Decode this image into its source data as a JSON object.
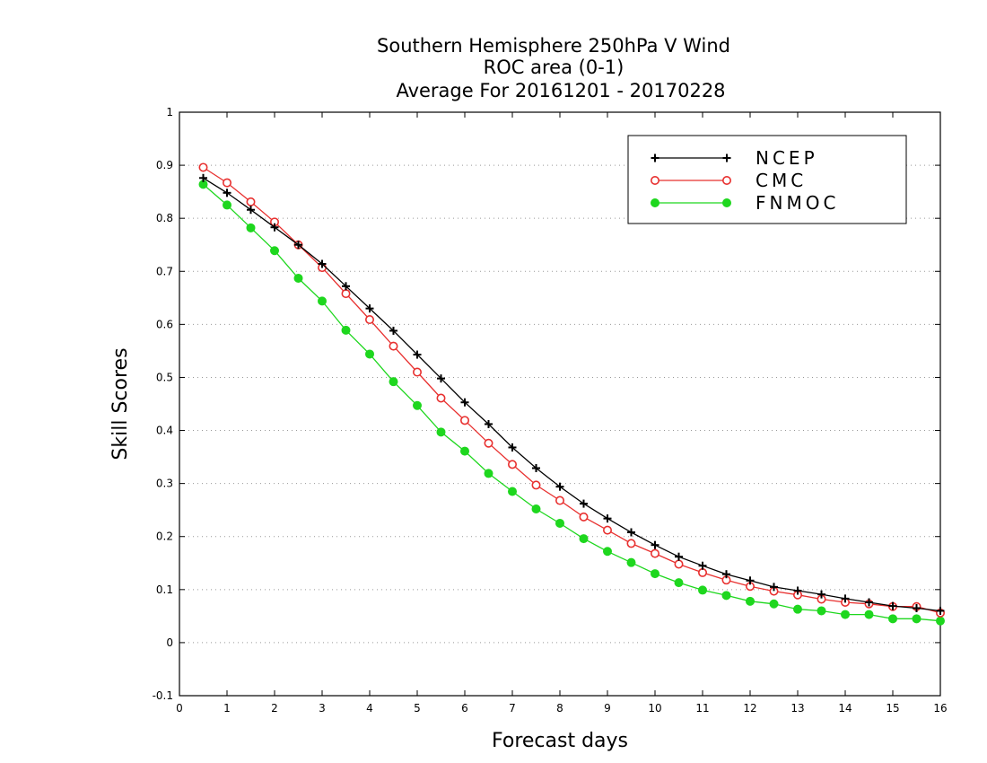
{
  "chart_data": {
    "type": "line",
    "title": [
      "Southern Hemisphere 250hPa V Wind",
      "ROC area (0-1)",
      "Average For 20161201 - 20170228"
    ],
    "xlabel": "Forecast days",
    "ylabel": "Skill Scores",
    "xlim": [
      0,
      16
    ],
    "ylim": [
      -0.1,
      1
    ],
    "xticks": [
      "0",
      "1",
      "2",
      "3",
      "4",
      "5",
      "6",
      "7",
      "8",
      "9",
      "10",
      "11",
      "12",
      "13",
      "14",
      "15",
      "16"
    ],
    "yticks": [
      "-0.1",
      "0",
      "0.1",
      "0.2",
      "0.3",
      "0.4",
      "0.5",
      "0.6",
      "0.7",
      "0.8",
      "0.9",
      "1"
    ],
    "grid": true,
    "legend_position": "top-right",
    "x": [
      0.5,
      1,
      1.5,
      2,
      2.5,
      3,
      3.5,
      4,
      4.5,
      5,
      5.5,
      6,
      6.5,
      7,
      7.5,
      8,
      8.5,
      9,
      9.5,
      10,
      10.5,
      11,
      11.5,
      12,
      12.5,
      13,
      13.5,
      14,
      14.5,
      15,
      15.5,
      16
    ],
    "series": [
      {
        "name": "NCEP",
        "color": "#000000",
        "marker": "plus",
        "values": [
          0.876,
          0.848,
          0.816,
          0.783,
          0.75,
          0.714,
          0.672,
          0.63,
          0.588,
          0.543,
          0.498,
          0.453,
          0.412,
          0.368,
          0.329,
          0.294,
          0.262,
          0.234,
          0.208,
          0.184,
          0.162,
          0.145,
          0.129,
          0.117,
          0.105,
          0.098,
          0.091,
          0.083,
          0.076,
          0.069,
          0.065,
          0.06
        ]
      },
      {
        "name": "CMC",
        "color": "#e8302f",
        "marker": "open-circle",
        "values": [
          0.896,
          0.867,
          0.831,
          0.793,
          0.75,
          0.707,
          0.658,
          0.609,
          0.559,
          0.51,
          0.461,
          0.419,
          0.376,
          0.336,
          0.297,
          0.268,
          0.237,
          0.212,
          0.187,
          0.168,
          0.148,
          0.132,
          0.118,
          0.106,
          0.097,
          0.09,
          0.082,
          0.076,
          0.073,
          0.068,
          0.068,
          0.056
        ]
      },
      {
        "name": "FNMOC",
        "color": "#1ed71e",
        "marker": "filled-circle",
        "values": [
          0.864,
          0.825,
          0.782,
          0.739,
          0.687,
          0.644,
          0.589,
          0.544,
          0.492,
          0.447,
          0.397,
          0.361,
          0.319,
          0.285,
          0.252,
          0.225,
          0.196,
          0.172,
          0.151,
          0.13,
          0.113,
          0.099,
          0.089,
          0.078,
          0.073,
          0.063,
          0.06,
          0.053,
          0.053,
          0.045,
          0.045,
          0.041
        ]
      }
    ]
  }
}
